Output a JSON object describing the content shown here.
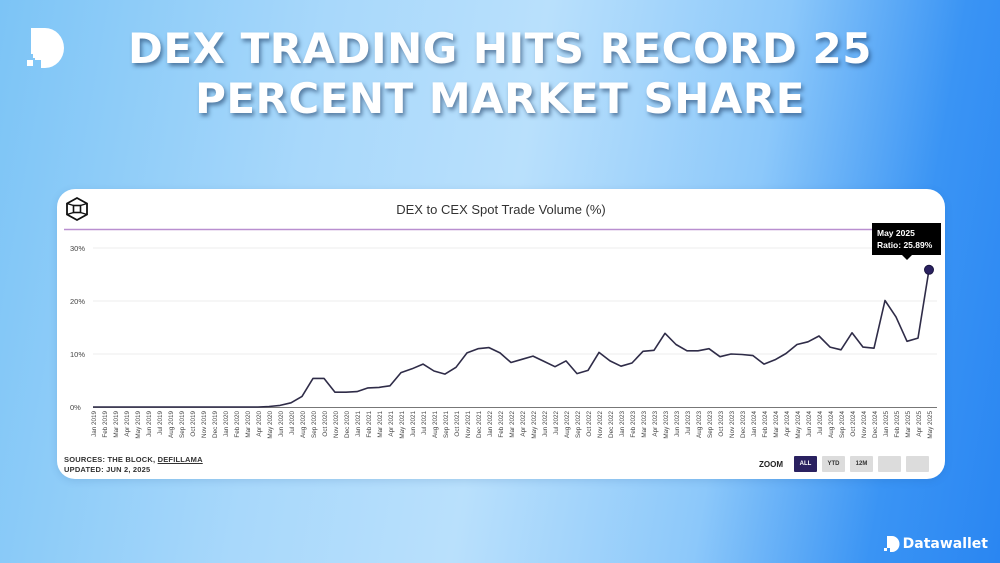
{
  "headline": {
    "line1": "DEX TRADING HITS RECORD 25",
    "line2": "PERCENT MARKET SHARE"
  },
  "brand": {
    "name": "Datawallet",
    "logo_icon": "datawallet-d-icon"
  },
  "card": {
    "logo_icon": "the-block-cube-icon",
    "tooltip": {
      "line1": "May 2025",
      "line2": "Ratio: 25.89%"
    },
    "sources_label": "SOURCES: THE BLOCK, ",
    "sources_link": "DEFILLAMA",
    "updated": "UPDATED: JUN 2, 2025",
    "zoom": {
      "label": "ZOOM",
      "buttons": [
        "ALL",
        "YTD",
        "12M",
        "",
        ""
      ],
      "active": "ALL"
    }
  },
  "colors": {
    "line": "#2f2c48",
    "marker": "#2a2160",
    "reference_line": "#b98fd0",
    "grid": "#ececec",
    "active_button": "#2a2160"
  },
  "chart_data": {
    "type": "line",
    "title": "DEX to CEX Spot Trade Volume (%)",
    "xlabel": "",
    "ylabel": "",
    "ylim": [
      0,
      30
    ],
    "yticks": [
      "0%",
      "10%",
      "20%",
      "30%"
    ],
    "grid": true,
    "legend": null,
    "x": [
      "Jan 2019",
      "Feb 2019",
      "Mar 2019",
      "Apr 2019",
      "May 2019",
      "Jun 2019",
      "Jul 2019",
      "Aug 2019",
      "Sep 2019",
      "Oct 2019",
      "Nov 2019",
      "Dec 2019",
      "Jan 2020",
      "Feb 2020",
      "Mar 2020",
      "Apr 2020",
      "May 2020",
      "Jun 2020",
      "Jul 2020",
      "Aug 2020",
      "Sep 2020",
      "Oct 2020",
      "Nov 2020",
      "Dec 2020",
      "Jan 2021",
      "Feb 2021",
      "Mar 2021",
      "Apr 2021",
      "May 2021",
      "Jun 2021",
      "Jul 2021",
      "Aug 2021",
      "Sep 2021",
      "Oct 2021",
      "Nov 2021",
      "Dec 2021",
      "Jan 2022",
      "Feb 2022",
      "Mar 2022",
      "Apr 2022",
      "May 2022",
      "Jun 2022",
      "Jul 2022",
      "Aug 2022",
      "Sep 2022",
      "Oct 2022",
      "Nov 2022",
      "Dec 2022",
      "Jan 2023",
      "Feb 2023",
      "Mar 2023",
      "Apr 2023",
      "May 2023",
      "Jun 2023",
      "Jul 2023",
      "Aug 2023",
      "Sep 2023",
      "Oct 2023",
      "Nov 2023",
      "Dec 2023",
      "Jan 2024",
      "Feb 2024",
      "Mar 2024",
      "Apr 2024",
      "May 2024",
      "Jun 2024",
      "Jul 2024",
      "Aug 2024",
      "Sep 2024",
      "Oct 2024",
      "Nov 2024",
      "Dec 2024",
      "Jan 2025",
      "Feb 2025",
      "Mar 2025",
      "Apr 2025",
      "May 2025"
    ],
    "series": [
      {
        "name": "Ratio",
        "values": [
          0,
          0,
          0,
          0,
          0,
          0,
          0,
          0,
          0,
          0,
          0,
          0,
          0,
          0,
          0,
          0,
          0.1,
          0.3,
          0.8,
          2.0,
          5.4,
          5.4,
          2.8,
          2.8,
          2.9,
          3.6,
          3.7,
          4.0,
          6.5,
          7.2,
          8.1,
          6.8,
          6.2,
          7.5,
          10.2,
          11.0,
          11.2,
          10.2,
          8.4,
          9.0,
          9.6,
          8.6,
          7.6,
          8.7,
          6.3,
          6.9,
          10.3,
          8.7,
          7.7,
          8.3,
          10.5,
          10.7,
          13.9,
          11.8,
          10.6,
          10.6,
          11.0,
          9.5,
          10.0,
          9.9,
          9.7,
          8.1,
          8.9,
          10.1,
          11.8,
          12.3,
          13.4,
          11.3,
          10.8,
          14.0,
          11.3,
          11.1,
          20.1,
          17.0,
          12.4,
          13.0,
          25.89
        ]
      }
    ],
    "reference_line": {
      "value": 33.5,
      "color": "#b98fd0"
    },
    "annotations": [
      {
        "x": "May 2025",
        "text": "May 2025 Ratio: 25.89%"
      }
    ]
  }
}
